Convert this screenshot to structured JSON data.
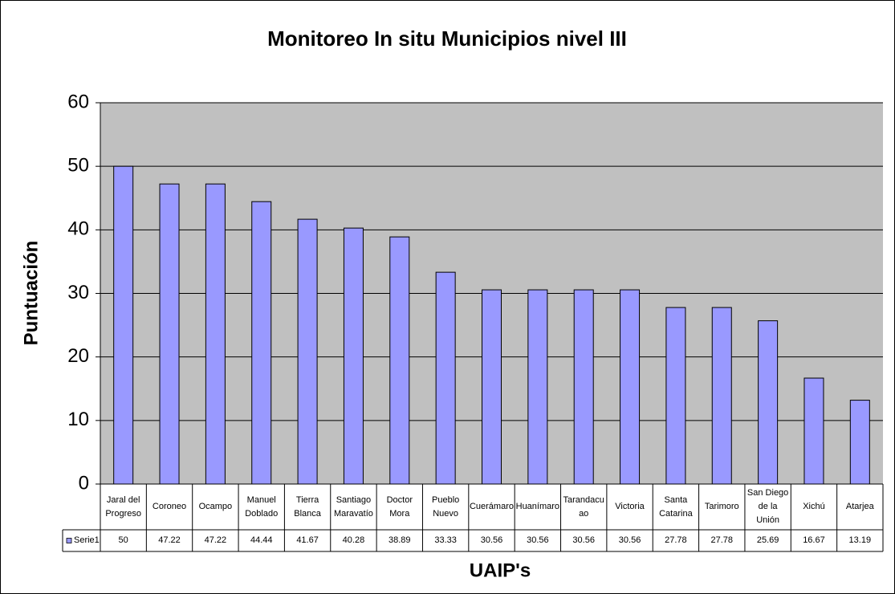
{
  "chart_data": {
    "type": "bar",
    "title": "Monitoreo In situ Municipios nivel III",
    "y_label": "Puntuación",
    "x_label": "UAIP's",
    "categories": [
      "Jaral del Progreso",
      "Coroneo",
      "Ocampo",
      "Manuel Doblado",
      "Tierra Blanca",
      "Santiago Maravatío",
      "Doctor Mora",
      "Pueblo Nuevo",
      "Cuerámaro",
      "Huanímaro",
      "Tarandacuao",
      "Victoria",
      "Santa Catarina",
      "Tarimoro",
      "San Diego de la Unión",
      "Xichú",
      "Atarjea"
    ],
    "series": [
      {
        "name": "Serie1",
        "color": "#9999ff",
        "values": [
          50,
          47.22,
          47.22,
          44.44,
          41.67,
          40.28,
          38.89,
          33.33,
          30.56,
          30.56,
          30.56,
          30.56,
          27.78,
          27.78,
          25.69,
          16.67,
          13.19
        ]
      }
    ],
    "ylim": [
      0,
      60
    ],
    "yticks": [
      0,
      10,
      20,
      30,
      40,
      50,
      60
    ],
    "grid": true
  }
}
